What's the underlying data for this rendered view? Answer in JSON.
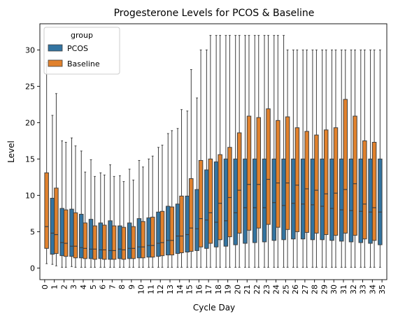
{
  "chart_data": {
    "type": "box",
    "title": "Progesterone Levels for PCOS & Baseline",
    "xlabel": "Cycle Day",
    "ylabel": "Level",
    "ylim": [
      -1.6,
      33.6
    ],
    "yticks": [
      0,
      5,
      10,
      15,
      20,
      25,
      30
    ],
    "categories": [
      "0",
      "1",
      "2",
      "3",
      "4",
      "5",
      "6",
      "7",
      "8",
      "9",
      "10",
      "11",
      "12",
      "13",
      "14",
      "15",
      "16",
      "17",
      "18",
      "19",
      "20",
      "21",
      "22",
      "23",
      "24",
      "25",
      "26",
      "27",
      "28",
      "29",
      "30",
      "31",
      "32",
      "33",
      "34",
      "35"
    ],
    "legend": {
      "title": "group",
      "position": "top-left"
    },
    "series": [
      {
        "name": "PCOS",
        "color": "#3274a1",
        "boxes": [
          null,
          {
            "wlo": 0.5,
            "q1": 1.9,
            "med": 4.8,
            "q3": 9.6,
            "whi": 21.0
          },
          {
            "wlo": 0.1,
            "q1": 1.7,
            "med": 3.5,
            "q3": 8.2,
            "whi": 17.5
          },
          {
            "wlo": 0.2,
            "q1": 1.6,
            "med": 3.0,
            "q3": 8.1,
            "whi": 17.9
          },
          {
            "wlo": 0.1,
            "q1": 1.4,
            "med": 2.8,
            "q3": 7.4,
            "whi": 16.1
          },
          {
            "wlo": 0.1,
            "q1": 1.3,
            "med": 2.6,
            "q3": 6.7,
            "whi": 14.9
          },
          {
            "wlo": 0.1,
            "q1": 1.3,
            "med": 2.5,
            "q3": 6.2,
            "whi": 13.1
          },
          {
            "wlo": 0.1,
            "q1": 1.2,
            "med": 2.4,
            "q3": 6.5,
            "whi": 14.2
          },
          {
            "wlo": 0.1,
            "q1": 1.3,
            "med": 2.6,
            "q3": 5.8,
            "whi": 12.7
          },
          {
            "wlo": 0.1,
            "q1": 1.3,
            "med": 2.7,
            "q3": 6.2,
            "whi": 13.6
          },
          {
            "wlo": 0.1,
            "q1": 1.4,
            "med": 2.9,
            "q3": 6.8,
            "whi": 14.8
          },
          {
            "wlo": 0.1,
            "q1": 1.5,
            "med": 3.1,
            "q3": 6.9,
            "whi": 15.0
          },
          {
            "wlo": 0.1,
            "q1": 1.6,
            "med": 3.4,
            "q3": 7.7,
            "whi": 16.6
          },
          {
            "wlo": 0.1,
            "q1": 1.8,
            "med": 3.8,
            "q3": 8.5,
            "whi": 18.5
          },
          {
            "wlo": 0.1,
            "q1": 2.0,
            "med": 4.4,
            "q3": 8.8,
            "whi": 19.2
          },
          {
            "wlo": 0.1,
            "q1": 2.2,
            "med": 4.6,
            "q3": 9.9,
            "whi": 21.6
          },
          {
            "wlo": 0.1,
            "q1": 2.4,
            "med": 5.4,
            "q3": 10.8,
            "whi": 23.4
          },
          {
            "wlo": 0.1,
            "q1": 2.7,
            "med": 6.6,
            "q3": 13.5,
            "whi": 30.0
          },
          {
            "wlo": 0.1,
            "q1": 2.9,
            "med": 6.3,
            "q3": 14.6,
            "whi": 32.0
          },
          {
            "wlo": 0.1,
            "q1": 3.0,
            "med": 6.5,
            "q3": 15.0,
            "whi": 32.0
          },
          {
            "wlo": 0.1,
            "q1": 3.2,
            "med": 7.6,
            "q3": 15.0,
            "whi": 32.0
          },
          {
            "wlo": 0.1,
            "q1": 3.4,
            "med": 8.3,
            "q3": 15.0,
            "whi": 32.0
          },
          {
            "wlo": 0.1,
            "q1": 3.5,
            "med": 8.3,
            "q3": 15.0,
            "whi": 32.0
          },
          {
            "wlo": 0.1,
            "q1": 3.6,
            "med": 8.3,
            "q3": 15.0,
            "whi": 32.0
          },
          {
            "wlo": 0.1,
            "q1": 3.8,
            "med": 9.0,
            "q3": 15.0,
            "whi": 32.0
          },
          {
            "wlo": 0.1,
            "q1": 3.9,
            "med": 8.6,
            "q3": 15.0,
            "whi": 32.0
          },
          {
            "wlo": 0.1,
            "q1": 4.0,
            "med": 8.9,
            "q3": 15.0,
            "whi": 30.0
          },
          {
            "wlo": 0.1,
            "q1": 4.0,
            "med": 8.8,
            "q3": 15.0,
            "whi": 30.0
          },
          {
            "wlo": 0.1,
            "q1": 3.9,
            "med": 8.7,
            "q3": 15.0,
            "whi": 30.0
          },
          {
            "wlo": 0.1,
            "q1": 3.9,
            "med": 8.5,
            "q3": 15.0,
            "whi": 30.0
          },
          {
            "wlo": 0.1,
            "q1": 3.8,
            "med": 8.2,
            "q3": 15.0,
            "whi": 30.0
          },
          {
            "wlo": 0.1,
            "q1": 3.7,
            "med": 8.0,
            "q3": 15.0,
            "whi": 30.0
          },
          {
            "wlo": 0.1,
            "q1": 3.6,
            "med": 7.9,
            "q3": 15.0,
            "whi": 30.0
          },
          {
            "wlo": 0.1,
            "q1": 3.5,
            "med": 7.8,
            "q3": 15.0,
            "whi": 30.0
          },
          {
            "wlo": 0.1,
            "q1": 3.4,
            "med": 7.7,
            "q3": 15.0,
            "whi": 30.0
          },
          {
            "wlo": 0.1,
            "q1": 3.2,
            "med": 7.7,
            "q3": 15.0,
            "whi": 30.0
          }
        ]
      },
      {
        "name": "Baseline",
        "color": "#e1812c",
        "boxes": [
          {
            "wlo": 0.6,
            "q1": 2.7,
            "med": 5.7,
            "q3": 13.1,
            "whi": 28.3
          },
          {
            "wlo": 0.3,
            "q1": 2.0,
            "med": 4.6,
            "q3": 11.0,
            "whi": 24.0
          },
          {
            "wlo": 0.1,
            "q1": 1.6,
            "med": 3.4,
            "q3": 8.0,
            "whi": 17.3
          },
          {
            "wlo": 0.1,
            "q1": 1.4,
            "med": 3.0,
            "q3": 7.6,
            "whi": 16.8
          },
          {
            "wlo": 0.1,
            "q1": 1.3,
            "med": 2.7,
            "q3": 6.2,
            "whi": 13.2
          },
          {
            "wlo": 0.1,
            "q1": 1.2,
            "med": 2.6,
            "q3": 5.8,
            "whi": 12.6
          },
          {
            "wlo": 0.1,
            "q1": 1.2,
            "med": 2.5,
            "q3": 5.9,
            "whi": 12.8
          },
          {
            "wlo": 0.1,
            "q1": 1.2,
            "med": 2.4,
            "q3": 5.8,
            "whi": 12.6
          },
          {
            "wlo": 0.1,
            "q1": 1.2,
            "med": 2.5,
            "q3": 5.6,
            "whi": 11.9
          },
          {
            "wlo": 0.1,
            "q1": 1.3,
            "med": 2.7,
            "q3": 5.7,
            "whi": 12.1
          },
          {
            "wlo": 0.1,
            "q1": 1.4,
            "med": 2.9,
            "q3": 6.4,
            "whi": 13.9
          },
          {
            "wlo": 0.1,
            "q1": 1.5,
            "med": 3.1,
            "q3": 7.0,
            "whi": 15.4
          },
          {
            "wlo": 0.1,
            "q1": 1.7,
            "med": 3.5,
            "q3": 7.8,
            "whi": 16.9
          },
          {
            "wlo": 0.1,
            "q1": 1.8,
            "med": 3.8,
            "q3": 8.4,
            "whi": 18.9
          },
          {
            "wlo": 0.1,
            "q1": 2.1,
            "med": 4.4,
            "q3": 9.9,
            "whi": 21.8
          },
          {
            "wlo": 0.1,
            "q1": 2.3,
            "med": 5.5,
            "q3": 12.3,
            "whi": 27.3
          },
          {
            "wlo": 0.1,
            "q1": 2.9,
            "med": 6.8,
            "q3": 14.8,
            "whi": 30.0
          },
          {
            "wlo": 0.1,
            "q1": 3.4,
            "med": 7.6,
            "q3": 15.0,
            "whi": 32.0
          },
          {
            "wlo": 0.1,
            "q1": 3.9,
            "med": 8.9,
            "q3": 15.6,
            "whi": 32.0
          },
          {
            "wlo": 0.1,
            "q1": 4.3,
            "med": 9.7,
            "q3": 16.6,
            "whi": 32.0
          },
          {
            "wlo": 0.1,
            "q1": 4.8,
            "med": 10.7,
            "q3": 18.6,
            "whi": 32.0
          },
          {
            "wlo": 0.1,
            "q1": 5.2,
            "med": 11.5,
            "q3": 20.9,
            "whi": 32.0
          },
          {
            "wlo": 0.1,
            "q1": 5.5,
            "med": 11.5,
            "q3": 20.7,
            "whi": 32.0
          },
          {
            "wlo": 0.1,
            "q1": 6.0,
            "med": 12.2,
            "q3": 21.9,
            "whi": 32.0
          },
          {
            "wlo": 0.1,
            "q1": 5.6,
            "med": 11.7,
            "q3": 20.3,
            "whi": 32.0
          },
          {
            "wlo": 0.1,
            "q1": 5.3,
            "med": 11.7,
            "q3": 20.8,
            "whi": 30.0
          },
          {
            "wlo": 0.1,
            "q1": 5.0,
            "med": 11.4,
            "q3": 19.3,
            "whi": 30.0
          },
          {
            "wlo": 0.1,
            "q1": 4.9,
            "med": 10.9,
            "q3": 18.8,
            "whi": 30.0
          },
          {
            "wlo": 0.1,
            "q1": 4.8,
            "med": 10.7,
            "q3": 18.3,
            "whi": 30.0
          },
          {
            "wlo": 0.1,
            "q1": 4.6,
            "med": 10.2,
            "q3": 19.0,
            "whi": 30.0
          },
          {
            "wlo": 0.1,
            "q1": 4.5,
            "med": 10.3,
            "q3": 19.3,
            "whi": 30.0
          },
          {
            "wlo": 0.1,
            "q1": 4.8,
            "med": 10.8,
            "q3": 23.2,
            "whi": 30.0
          },
          {
            "wlo": 0.1,
            "q1": 4.5,
            "med": 11.6,
            "q3": 20.9,
            "whi": 30.0
          },
          {
            "wlo": 0.1,
            "q1": 4.0,
            "med": 8.8,
            "q3": 17.5,
            "whi": 30.0
          },
          {
            "wlo": 0.1,
            "q1": 3.8,
            "med": 8.3,
            "q3": 17.3,
            "whi": 30.0
          },
          null
        ]
      }
    ]
  }
}
